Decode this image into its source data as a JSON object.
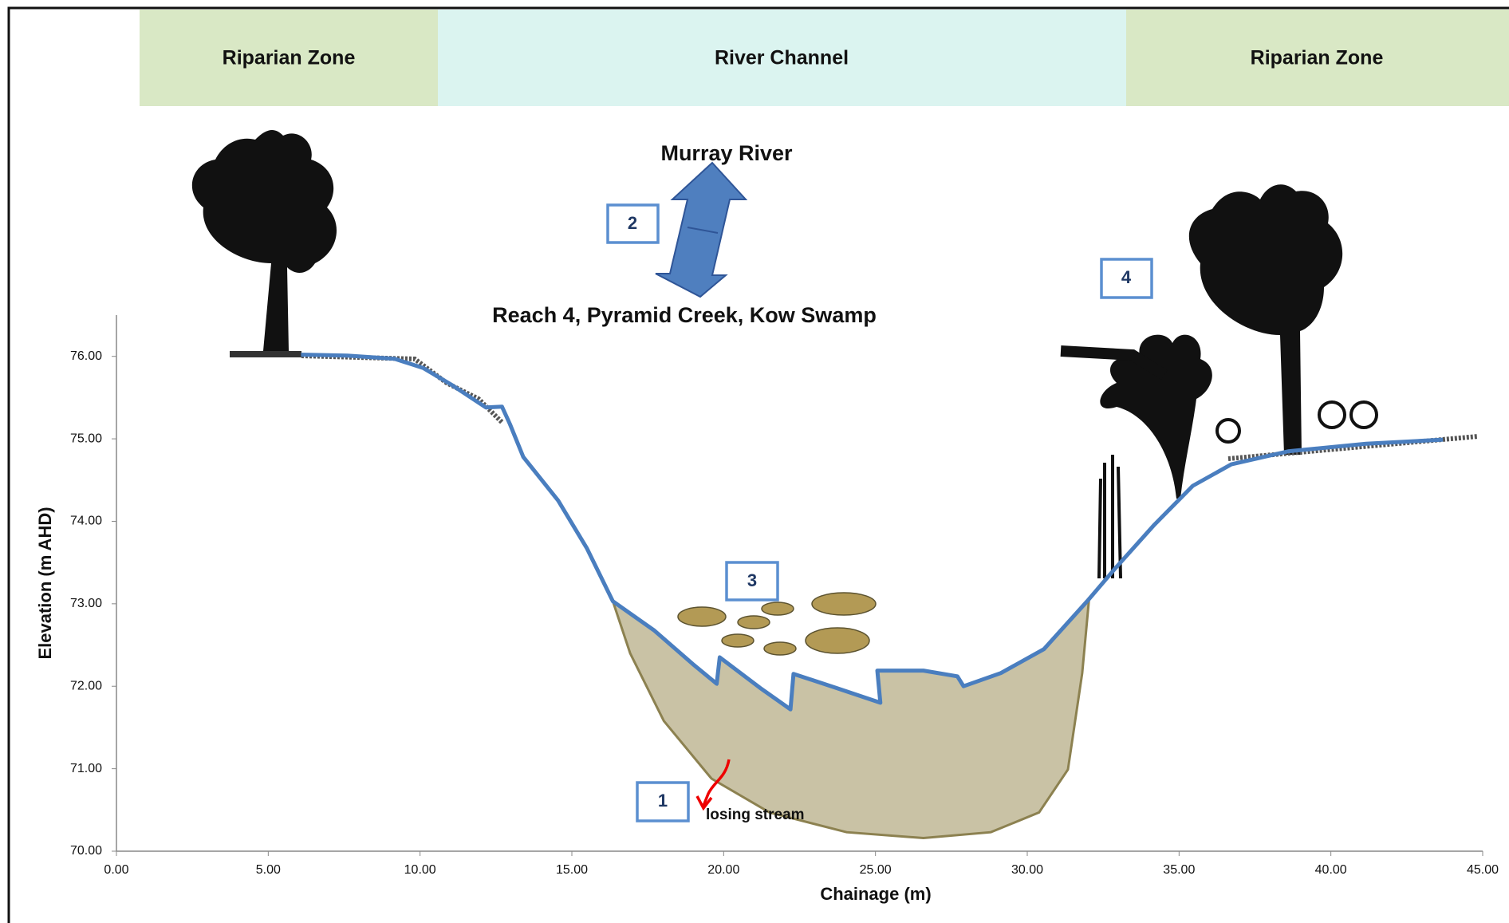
{
  "zones": [
    "Riparian Zone",
    "River Channel",
    "Riparian Zone"
  ],
  "chart_data": {
    "type": "line",
    "x_label": "Chainage (m)",
    "y_label": "Elevation (m AHD)",
    "annotations": [
      "Murray River",
      "Reach 4, Pyramid Creek, Kow Swamp",
      "losing stream"
    ],
    "markers": [
      "1",
      "2",
      "3",
      "4"
    ],
    "xlim": [
      0,
      45
    ],
    "ylim": [
      70,
      76.5
    ],
    "xticks": [
      {
        "value": 0,
        "label": "0.00"
      },
      {
        "value": 5,
        "label": "5.00"
      },
      {
        "value": 10,
        "label": "10.00"
      },
      {
        "value": 15,
        "label": "15.00"
      },
      {
        "value": 20,
        "label": "20.00"
      },
      {
        "value": 25,
        "label": "25.00"
      },
      {
        "value": 30,
        "label": "30.00"
      },
      {
        "value": 35,
        "label": "35.00"
      },
      {
        "value": 40,
        "label": "40.00"
      },
      {
        "value": 45,
        "label": "45.00"
      }
    ],
    "yticks": [
      {
        "value": 70,
        "label": "70.00"
      },
      {
        "value": 71,
        "label": "71.00"
      },
      {
        "value": 72,
        "label": "72.00"
      },
      {
        "value": 73,
        "label": "73.00"
      },
      {
        "value": 74,
        "label": "74.00"
      },
      {
        "value": 75,
        "label": "75.00"
      },
      {
        "value": 76,
        "label": "76.00"
      }
    ],
    "series": [
      {
        "type": "area",
        "color": "#c9c2a5",
        "edge_color": "#8c8150",
        "x": [
          16.35,
          17.7,
          18.98,
          19.77,
          19.87,
          21.2,
          22.2,
          22.3,
          23.7,
          25.16,
          25.06,
          26.58,
          27.7,
          27.9,
          29.13,
          30.55,
          32.03,
          31.81,
          31.34,
          30.39,
          28.8,
          26.58,
          24.05,
          21.51,
          19.6,
          18.03,
          16.92
        ],
        "values": [
          73.03,
          72.68,
          72.27,
          72.03,
          72.35,
          71.98,
          71.72,
          72.15,
          71.98,
          71.8,
          72.19,
          72.19,
          72.12,
          72.0,
          72.16,
          72.45,
          73.04,
          72.16,
          70.99,
          70.47,
          70.23,
          70.16,
          70.23,
          70.47,
          70.88,
          71.58,
          72.4
        ]
      },
      {
        "type": "line",
        "color": "#4a7ebf",
        "x": [
          6.08,
          7.6,
          9.16,
          10.1,
          11.06,
          12.17,
          12.7,
          12.96,
          13.4,
          14.55,
          15.5,
          16.35,
          17.7,
          18.98,
          19.77,
          19.87,
          21.2,
          22.2,
          22.3,
          23.7,
          25.16,
          25.06,
          26.58,
          27.7,
          27.9,
          29.13,
          30.55,
          31.97,
          32.92,
          34.19,
          35.45,
          36.72,
          38.62,
          41.16,
          43.69
        ],
        "values": [
          76.02,
          76.01,
          75.97,
          75.86,
          75.65,
          75.38,
          75.39,
          75.18,
          74.78,
          74.25,
          73.67,
          73.03,
          72.68,
          72.27,
          72.03,
          72.35,
          71.98,
          71.72,
          72.15,
          71.98,
          71.8,
          72.19,
          72.19,
          72.12,
          72.0,
          72.16,
          72.45,
          73.03,
          73.44,
          73.96,
          74.43,
          74.69,
          74.85,
          74.94,
          74.99
        ]
      }
    ]
  }
}
